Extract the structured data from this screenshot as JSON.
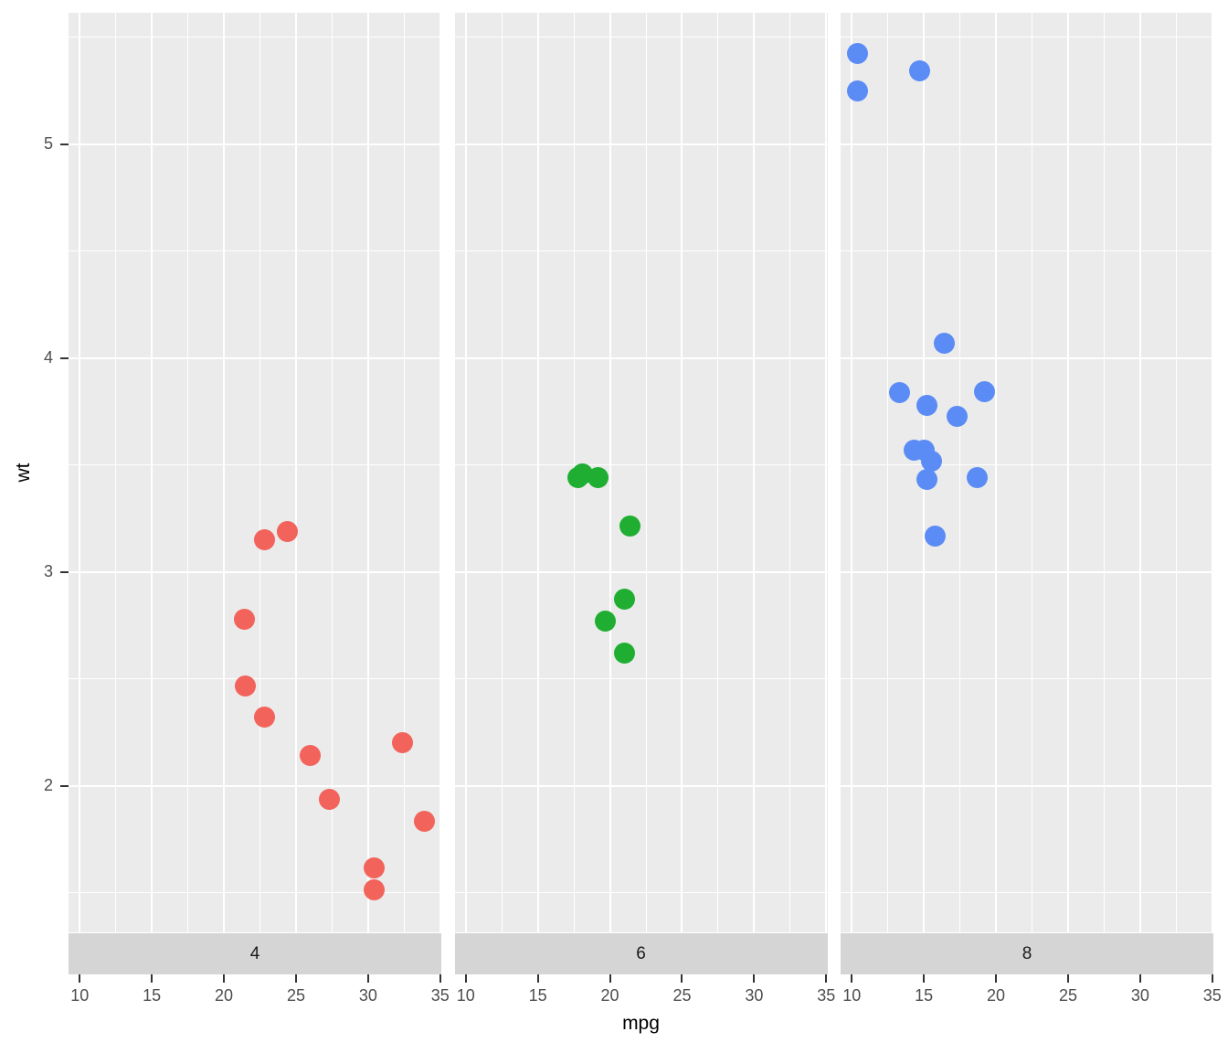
{
  "chart_data": {
    "type": "scatter",
    "title": "",
    "xlabel": "mpg",
    "ylabel": "wt",
    "facet_variable": "cyl",
    "legend": "none",
    "grid": "on",
    "x_ticks": [
      10,
      15,
      20,
      25,
      30,
      35
    ],
    "y_ticks": [
      2,
      3,
      4,
      5
    ],
    "x_minor_ticks": [
      12.5,
      17.5,
      22.5,
      27.5,
      32.5
    ],
    "y_minor_ticks": [
      1.5,
      2.5,
      3.5,
      4.5,
      5.5
    ],
    "x_range": [
      9.225,
      35.075
    ],
    "y_range": [
      1.315,
      5.615
    ],
    "colors": {
      "panel_background": "#EBEBEB",
      "strip_background": "#D5D5D5",
      "grid": "#FFFFFF",
      "tick_mark": "#333333",
      "tick_label": "#4D4D4D",
      "axis_title": "#000000",
      "strip_text": "#1A1A1A"
    },
    "facets": [
      {
        "label": "4",
        "point_color": "#F2635B",
        "points": [
          [
            22.8,
            2.32
          ],
          [
            24.4,
            3.19
          ],
          [
            22.8,
            3.15
          ],
          [
            32.4,
            2.2
          ],
          [
            30.4,
            1.615
          ],
          [
            33.9,
            1.835
          ],
          [
            21.5,
            2.465
          ],
          [
            27.3,
            1.935
          ],
          [
            26.0,
            2.14
          ],
          [
            30.4,
            1.513
          ],
          [
            21.4,
            2.78
          ]
        ]
      },
      {
        "label": "6",
        "point_color": "#1FAE32",
        "points": [
          [
            21.0,
            2.62
          ],
          [
            21.0,
            2.875
          ],
          [
            21.4,
            3.215
          ],
          [
            18.1,
            3.46
          ],
          [
            19.2,
            3.44
          ],
          [
            17.8,
            3.44
          ],
          [
            19.7,
            2.77
          ]
        ]
      },
      {
        "label": "8",
        "point_color": "#5B8CF5",
        "points": [
          [
            18.7,
            3.44
          ],
          [
            14.3,
            3.57
          ],
          [
            16.4,
            4.07
          ],
          [
            17.3,
            3.73
          ],
          [
            15.2,
            3.78
          ],
          [
            10.4,
            5.25
          ],
          [
            10.4,
            5.424
          ],
          [
            14.7,
            5.345
          ],
          [
            15.5,
            3.52
          ],
          [
            15.2,
            3.435
          ],
          [
            13.3,
            3.84
          ],
          [
            19.2,
            3.845
          ],
          [
            15.8,
            3.17
          ],
          [
            15.0,
            3.57
          ]
        ]
      }
    ]
  }
}
